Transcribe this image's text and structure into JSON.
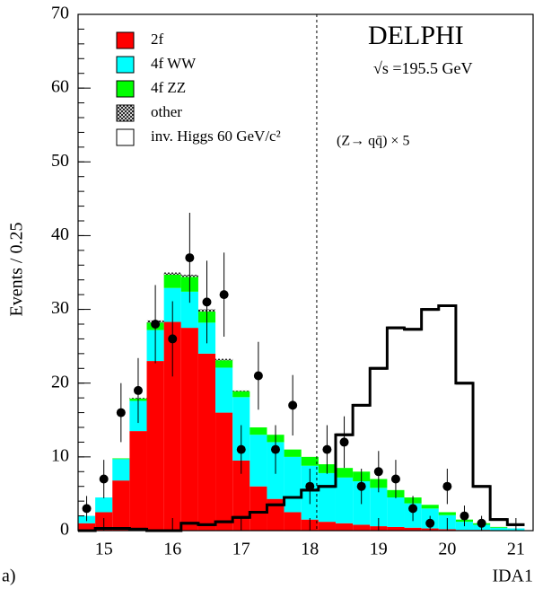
{
  "chart_data": {
    "type": "histogram",
    "title": "DELPHI",
    "subtitle": "√s =195.5 GeV",
    "annotation": "(Z→ qq̄) × 5",
    "panel_label": "a)",
    "x_label": "IDA1",
    "y_label": "Events / 0.25",
    "xlim": [
      14.625,
      21.25
    ],
    "ylim": [
      0,
      70
    ],
    "xticks": [
      15,
      16,
      17,
      18,
      19,
      20,
      21
    ],
    "yticks": [
      0,
      10,
      20,
      30,
      40,
      50,
      60,
      70
    ],
    "bins": [
      14.625,
      14.875,
      15.125,
      15.375,
      15.625,
      15.875,
      16.125,
      16.375,
      16.625,
      16.875,
      17.125,
      17.375,
      17.625,
      17.875,
      18.125,
      18.375,
      18.625,
      18.875,
      19.125,
      19.375,
      19.625,
      19.875,
      20.125,
      20.375,
      20.625,
      20.875,
      21.125
    ],
    "stacked": true,
    "series": [
      {
        "name": "2f",
        "color": "#ff0000",
        "values": [
          1,
          2.5,
          6.8,
          13.5,
          23,
          28.3,
          27.5,
          24,
          16,
          9.5,
          6,
          4.3,
          2.5,
          1.5,
          1.2,
          1,
          0.8,
          0.6,
          0.5,
          0.4,
          0.3,
          0.2,
          0.1,
          0.1,
          0,
          0
        ]
      },
      {
        "name": "4f WW",
        "color": "#00ffff",
        "values": [
          1,
          2,
          2.9,
          4.1,
          4.2,
          4.6,
          4.9,
          4.2,
          6.1,
          8.6,
          7,
          7.7,
          7.5,
          7.3,
          6.6,
          6.2,
          5.9,
          5.2,
          4,
          3.3,
          2.7,
          1.9,
          1.1,
          0.7,
          0.4,
          0.3
        ]
      },
      {
        "name": "4f ZZ",
        "color": "#00ff00",
        "values": [
          0,
          0,
          0.1,
          0.3,
          1,
          1.8,
          2,
          1.5,
          1,
          0.8,
          1,
          1,
          1,
          1.2,
          1.2,
          1.3,
          1.3,
          1.2,
          1,
          0.8,
          0.5,
          0.4,
          0.3,
          0.2,
          0.1,
          0
        ]
      },
      {
        "name": "other",
        "color": "#000000",
        "hatch": true,
        "values": [
          0,
          0,
          0,
          0.1,
          0.3,
          0.3,
          0.3,
          0.3,
          0.2,
          0.1,
          0,
          0,
          0,
          0,
          0,
          0,
          0,
          0,
          0,
          0,
          0,
          0,
          0,
          0,
          0,
          0
        ]
      }
    ],
    "signal": {
      "name": "inv. Higgs  60 GeV/c²",
      "color": "#000000",
      "values": [
        0,
        0.3,
        0.3,
        0.2,
        0,
        0,
        1,
        0.8,
        1.2,
        1.8,
        2.5,
        3.5,
        4.5,
        5.5,
        6,
        13,
        17,
        22,
        27.5,
        27.3,
        30,
        30.5,
        20,
        6,
        1.5,
        0.8
      ]
    },
    "data_points": {
      "x": [
        14.75,
        15,
        15.25,
        15.5,
        15.75,
        16,
        16.25,
        16.5,
        16.75,
        17,
        17.25,
        17.5,
        17.75,
        18,
        18.25,
        18.5,
        18.75,
        19,
        19.25,
        19.5,
        19.75,
        20,
        20.25,
        20.5
      ],
      "values": [
        3,
        7,
        16,
        19,
        28,
        26,
        37,
        31,
        32,
        11,
        21,
        11,
        17,
        6,
        11,
        12,
        6,
        8,
        7,
        3,
        1,
        6,
        2,
        1
      ],
      "errors": [
        1.7,
        2.6,
        4,
        4.4,
        5.3,
        5.1,
        6.1,
        5.6,
        5.7,
        3.3,
        4.6,
        3.3,
        4.1,
        2.4,
        3.3,
        3.5,
        2.4,
        2.8,
        2.6,
        1.7,
        1,
        2.4,
        1.4,
        1
      ]
    },
    "cut_line": 18.1
  }
}
